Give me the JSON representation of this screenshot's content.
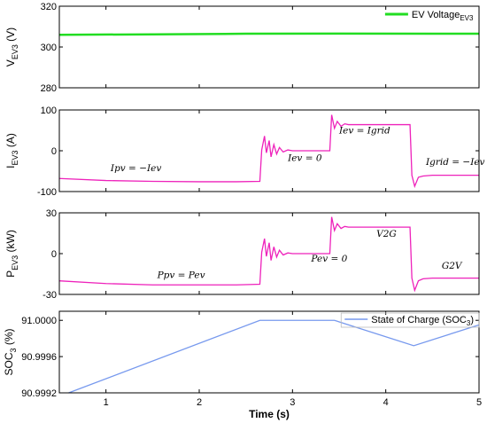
{
  "chart_data": [
    {
      "type": "line",
      "xlim": [
        0.5,
        5
      ],
      "ylim": [
        280,
        320
      ],
      "yticks": [
        "280",
        "300",
        "320"
      ],
      "ylabel": {
        "main": "V",
        "sub": "EV3",
        "unit": " (V)"
      },
      "legend": {
        "text": "EV Voltage",
        "sub": "EV3",
        "color": "#22dd22",
        "placement": "top-right"
      },
      "series": [
        {
          "color": "#22dd22",
          "x": [
            0.5,
            1.5,
            2.5,
            3.5,
            4.5,
            5.0
          ],
          "y": [
            306.0,
            306.2,
            306.5,
            306.6,
            306.5,
            306.5
          ]
        }
      ],
      "annotations": []
    },
    {
      "type": "line",
      "xlim": [
        0.5,
        5
      ],
      "ylim": [
        -100,
        100
      ],
      "yticks": [
        "-100",
        "0",
        "100"
      ],
      "ylabel": {
        "main": "I",
        "sub": "EV3",
        "unit": " (A)"
      },
      "series": [
        {
          "color": "#ee22bb",
          "x": [
            0.5,
            1.0,
            1.5,
            2.0,
            2.4,
            2.65,
            2.67,
            2.7,
            2.72,
            2.75,
            2.77,
            2.8,
            2.83,
            2.86,
            2.9,
            2.95,
            3.0,
            3.4,
            3.42,
            3.45,
            3.48,
            3.52,
            3.56,
            3.6,
            4.0,
            4.26,
            4.28,
            4.31,
            4.35,
            4.4,
            4.5,
            5.0
          ],
          "y": [
            -68,
            -73,
            -75,
            -76,
            -76,
            -75,
            2,
            36,
            -5,
            25,
            -15,
            15,
            -8,
            8,
            -3,
            2,
            0,
            0,
            88,
            55,
            72,
            60,
            66,
            64,
            64,
            64,
            -60,
            -87,
            -65,
            -62,
            -60,
            -60
          ]
        }
      ],
      "annotations": [
        {
          "text": "Ipv = −Iev",
          "x": 1.05,
          "y": -50
        },
        {
          "text": "Iev = 0",
          "x": 2.95,
          "y": -25
        },
        {
          "text": "Iev = Igrid",
          "x": 3.5,
          "y": 42
        },
        {
          "text": "Igrid = −Iev",
          "x": 4.43,
          "y": -35
        }
      ]
    },
    {
      "type": "line",
      "xlim": [
        0.5,
        5
      ],
      "ylim": [
        -30,
        30
      ],
      "yticks": [
        "-30",
        "0",
        "30"
      ],
      "ylabel": {
        "main": "P",
        "sub": "EV3",
        "unit": " (kW)"
      },
      "series": [
        {
          "color": "#ee22bb",
          "x": [
            0.5,
            1.0,
            1.5,
            2.0,
            2.4,
            2.65,
            2.67,
            2.7,
            2.72,
            2.75,
            2.77,
            2.8,
            2.83,
            2.86,
            2.9,
            2.95,
            3.0,
            3.4,
            3.42,
            3.45,
            3.48,
            3.52,
            3.56,
            3.6,
            4.0,
            4.26,
            4.28,
            4.31,
            4.35,
            4.4,
            4.5,
            5.0
          ],
          "y": [
            -20,
            -22,
            -23,
            -23,
            -23,
            -22.5,
            1,
            11,
            -2,
            8,
            -5,
            5,
            -2.5,
            2.5,
            -1,
            0.5,
            0,
            0,
            27,
            17,
            22,
            18.5,
            20,
            19.5,
            19.5,
            19.5,
            -18,
            -27,
            -20,
            -18.5,
            -18,
            -18
          ]
        }
      ],
      "annotations": [
        {
          "text": "Ppv = Pev",
          "x": 1.55,
          "y": -18
        },
        {
          "text": "Pev = 0",
          "x": 3.2,
          "y": -6
        },
        {
          "text": "V2G",
          "x": 3.9,
          "y": 12.5
        },
        {
          "text": "G2V",
          "x": 4.6,
          "y": -11
        }
      ]
    },
    {
      "type": "line",
      "xlim": [
        0.5,
        5
      ],
      "ylim": [
        90.9992,
        91.0001
      ],
      "yticks": [
        "90.9992",
        "90.9996",
        "91.0000"
      ],
      "ylabel": {
        "main": "SOC",
        "sub": "3",
        "unit": " (%)"
      },
      "legend": {
        "text": "State of Charge (SOC",
        "sub": "3",
        "tail": ")",
        "color": "#7799ee",
        "placement": "top-right"
      },
      "xticks": [
        "1",
        "2",
        "3",
        "4",
        "5"
      ],
      "xlabel": "Time (s)",
      "series": [
        {
          "color": "#7799ee",
          "x": [
            0.6,
            2.65,
            3.45,
            4.3,
            5.0
          ],
          "y": [
            90.9992,
            91.0,
            91.0,
            90.99972,
            90.99995
          ]
        }
      ],
      "annotations": []
    }
  ]
}
